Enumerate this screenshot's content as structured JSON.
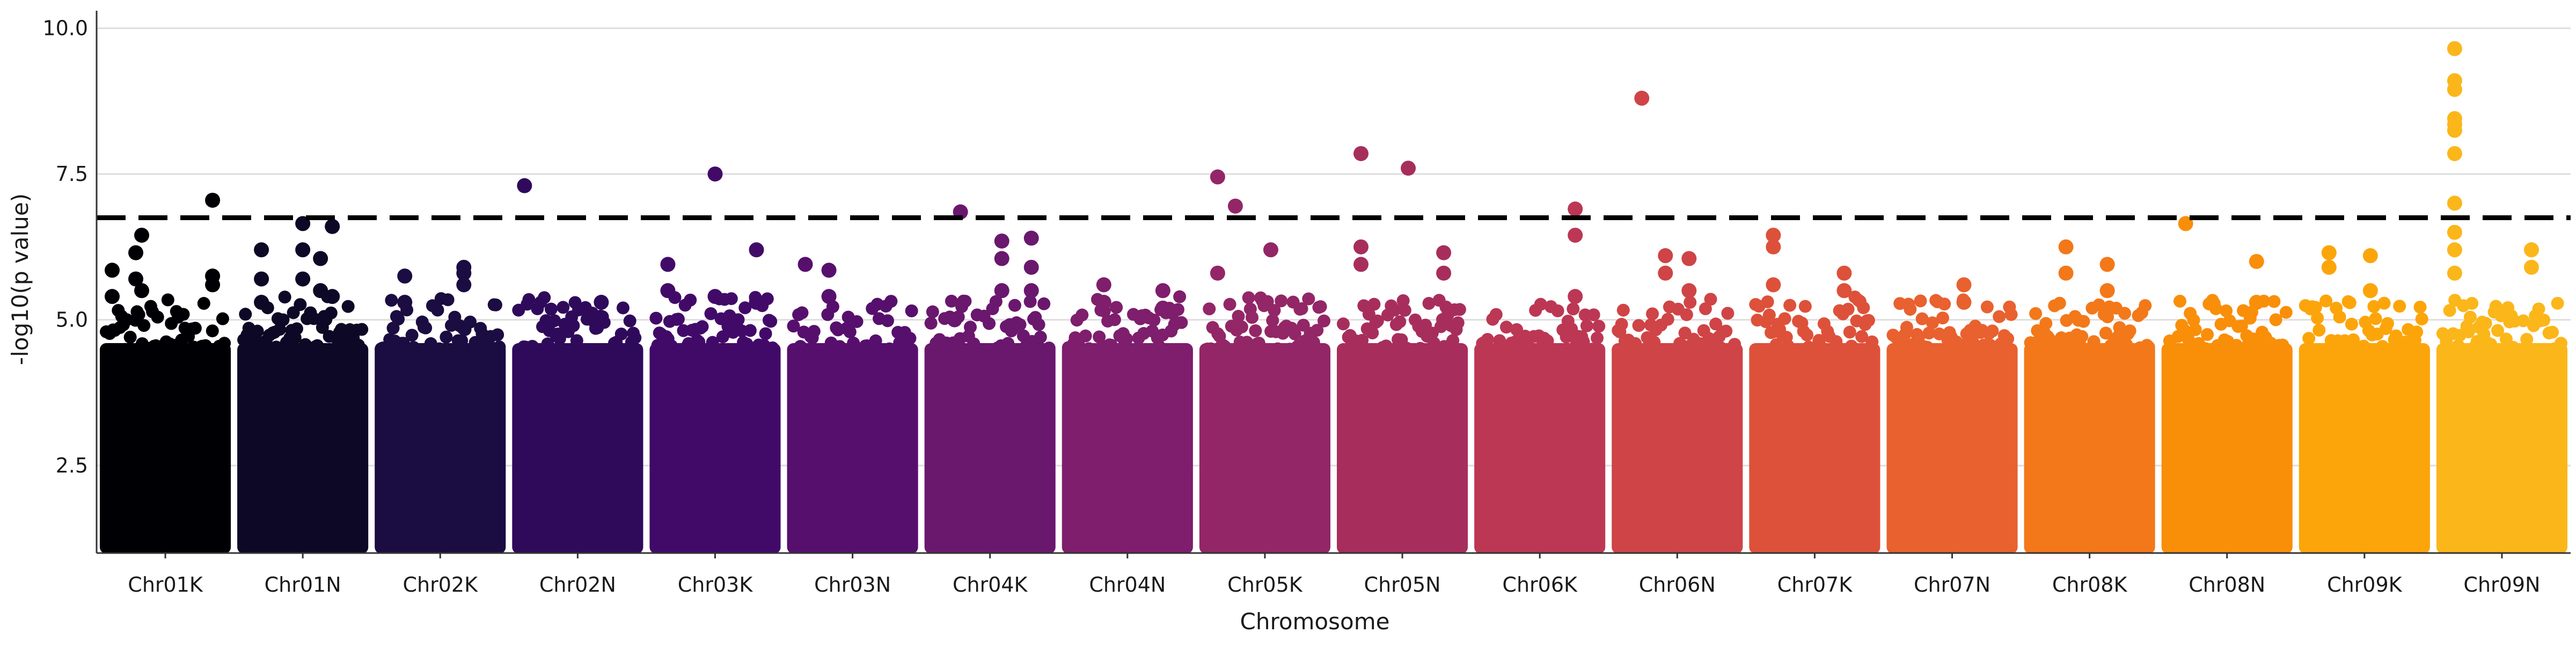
{
  "chart_data": {
    "type": "scatter",
    "subtype": "manhattan",
    "title": "",
    "xlabel": "Chromosome",
    "ylabel": "-log10(p value)",
    "ylim": [
      1.0,
      10.3
    ],
    "yticks": [
      2.5,
      5.0,
      7.5,
      10.0
    ],
    "ytick_labels": [
      "2.5",
      "5.0",
      "7.5",
      "10.0"
    ],
    "grid": "horizontal",
    "legend": "none",
    "significance_threshold": 6.75,
    "threshold_style": "dashed",
    "baseline_min": 1.1,
    "bulk_max": 4.6,
    "categories": [
      "Chr01K",
      "Chr01N",
      "Chr02K",
      "Chr02N",
      "Chr03K",
      "Chr03N",
      "Chr04K",
      "Chr04N",
      "Chr05K",
      "Chr05N",
      "Chr06K",
      "Chr06N",
      "Chr07K",
      "Chr07N",
      "Chr08K",
      "Chr08N",
      "Chr09K",
      "Chr09N"
    ],
    "colors": [
      "#000004",
      "#0c0826",
      "#1b0c41",
      "#2f0a5b",
      "#420a68",
      "#570f6d",
      "#6a176e",
      "#7e1e6c",
      "#932667",
      "#a72e5c",
      "#bc3754",
      "#cf4446",
      "#dd513a",
      "#e8612f",
      "#f37819",
      "#f98e09",
      "#fca50a",
      "#fbb61a"
    ],
    "top_hits": [
      {
        "chromosome": "Chr01K",
        "pos": 0.05,
        "values": [
          5.85,
          5.4
        ]
      },
      {
        "chromosome": "Chr01K",
        "pos": 0.25,
        "values": [
          6.15,
          5.7
        ]
      },
      {
        "chromosome": "Chr01K",
        "pos": 0.3,
        "values": [
          6.45,
          5.5
        ]
      },
      {
        "chromosome": "Chr01K",
        "pos": 0.9,
        "values": [
          7.05,
          5.75,
          5.6
        ]
      },
      {
        "chromosome": "Chr01N",
        "pos": 0.15,
        "values": [
          6.2,
          5.7,
          5.3
        ]
      },
      {
        "chromosome": "Chr01N",
        "pos": 0.5,
        "values": [
          6.65,
          6.2,
          5.7
        ]
      },
      {
        "chromosome": "Chr01N",
        "pos": 0.65,
        "values": [
          6.05,
          5.5
        ]
      },
      {
        "chromosome": "Chr01N",
        "pos": 0.75,
        "values": [
          6.6,
          5.4
        ]
      },
      {
        "chromosome": "Chr02K",
        "pos": 0.2,
        "values": [
          5.75,
          5.3
        ]
      },
      {
        "chromosome": "Chr02K",
        "pos": 0.7,
        "values": [
          5.9,
          5.8,
          5.6
        ]
      },
      {
        "chromosome": "Chr02N",
        "pos": 0.05,
        "values": [
          7.3
        ]
      },
      {
        "chromosome": "Chr02N",
        "pos": 0.7,
        "values": [
          5.3
        ]
      },
      {
        "chromosome": "Chr03K",
        "pos": 0.1,
        "values": [
          5.95,
          5.5
        ]
      },
      {
        "chromosome": "Chr03K",
        "pos": 0.5,
        "values": [
          7.5,
          5.4
        ]
      },
      {
        "chromosome": "Chr03K",
        "pos": 0.85,
        "values": [
          6.2,
          5.3
        ]
      },
      {
        "chromosome": "Chr03N",
        "pos": 0.1,
        "values": [
          5.95
        ]
      },
      {
        "chromosome": "Chr03N",
        "pos": 0.3,
        "values": [
          5.85,
          5.4
        ]
      },
      {
        "chromosome": "Chr04K",
        "pos": 0.2,
        "values": [
          5.0
        ]
      },
      {
        "chromosome": "Chr04K",
        "pos": 0.25,
        "values": [
          6.85
        ]
      },
      {
        "chromosome": "Chr04K",
        "pos": 0.6,
        "values": [
          6.35,
          6.05,
          5.5
        ]
      },
      {
        "chromosome": "Chr04K",
        "pos": 0.85,
        "values": [
          6.4,
          5.9,
          5.5
        ]
      },
      {
        "chromosome": "Chr04N",
        "pos": 0.3,
        "values": [
          5.6,
          5.3
        ]
      },
      {
        "chromosome": "Chr04N",
        "pos": 0.8,
        "values": [
          5.5,
          5.2
        ]
      },
      {
        "chromosome": "Chr05K",
        "pos": 0.1,
        "values": [
          7.45,
          5.8
        ]
      },
      {
        "chromosome": "Chr05K",
        "pos": 0.25,
        "values": [
          6.95
        ]
      },
      {
        "chromosome": "Chr05K",
        "pos": 0.55,
        "values": [
          6.2
        ]
      },
      {
        "chromosome": "Chr05N",
        "pos": 0.15,
        "values": [
          7.85,
          6.25,
          5.95
        ]
      },
      {
        "chromosome": "Chr05N",
        "pos": 0.55,
        "values": [
          7.6
        ]
      },
      {
        "chromosome": "Chr05N",
        "pos": 0.85,
        "values": [
          6.15,
          5.8
        ]
      },
      {
        "chromosome": "Chr06K",
        "pos": 0.8,
        "values": [
          6.9,
          6.45,
          5.4
        ]
      },
      {
        "chromosome": "Chr06N",
        "pos": 0.2,
        "values": [
          8.8
        ]
      },
      {
        "chromosome": "Chr06N",
        "pos": 0.4,
        "values": [
          6.1,
          5.8
        ]
      },
      {
        "chromosome": "Chr06N",
        "pos": 0.6,
        "values": [
          6.05,
          5.5
        ]
      },
      {
        "chromosome": "Chr07K",
        "pos": 0.15,
        "values": [
          6.45,
          6.25,
          5.6
        ]
      },
      {
        "chromosome": "Chr07K",
        "pos": 0.75,
        "values": [
          5.8,
          5.5
        ]
      },
      {
        "chromosome": "Chr07N",
        "pos": 0.6,
        "values": [
          5.6,
          5.3
        ]
      },
      {
        "chromosome": "Chr08K",
        "pos": 0.3,
        "values": [
          6.25,
          5.8
        ]
      },
      {
        "chromosome": "Chr08K",
        "pos": 0.65,
        "values": [
          5.95,
          5.5
        ]
      },
      {
        "chromosome": "Chr08N",
        "pos": 0.15,
        "values": [
          6.65
        ]
      },
      {
        "chromosome": "Chr08N",
        "pos": 0.75,
        "values": [
          6.0,
          5.3
        ]
      },
      {
        "chromosome": "Chr09K",
        "pos": 0.2,
        "values": [
          6.15,
          5.9
        ]
      },
      {
        "chromosome": "Chr09K",
        "pos": 0.55,
        "values": [
          6.1,
          5.5
        ]
      },
      {
        "chromosome": "Chr09N",
        "pos": 0.1,
        "values": [
          9.65,
          9.1,
          8.95,
          8.45,
          8.35,
          8.25,
          7.85,
          7.0,
          6.5,
          6.2,
          5.8
        ]
      },
      {
        "chromosome": "Chr09N",
        "pos": 0.75,
        "values": [
          6.2,
          5.9
        ]
      }
    ]
  }
}
